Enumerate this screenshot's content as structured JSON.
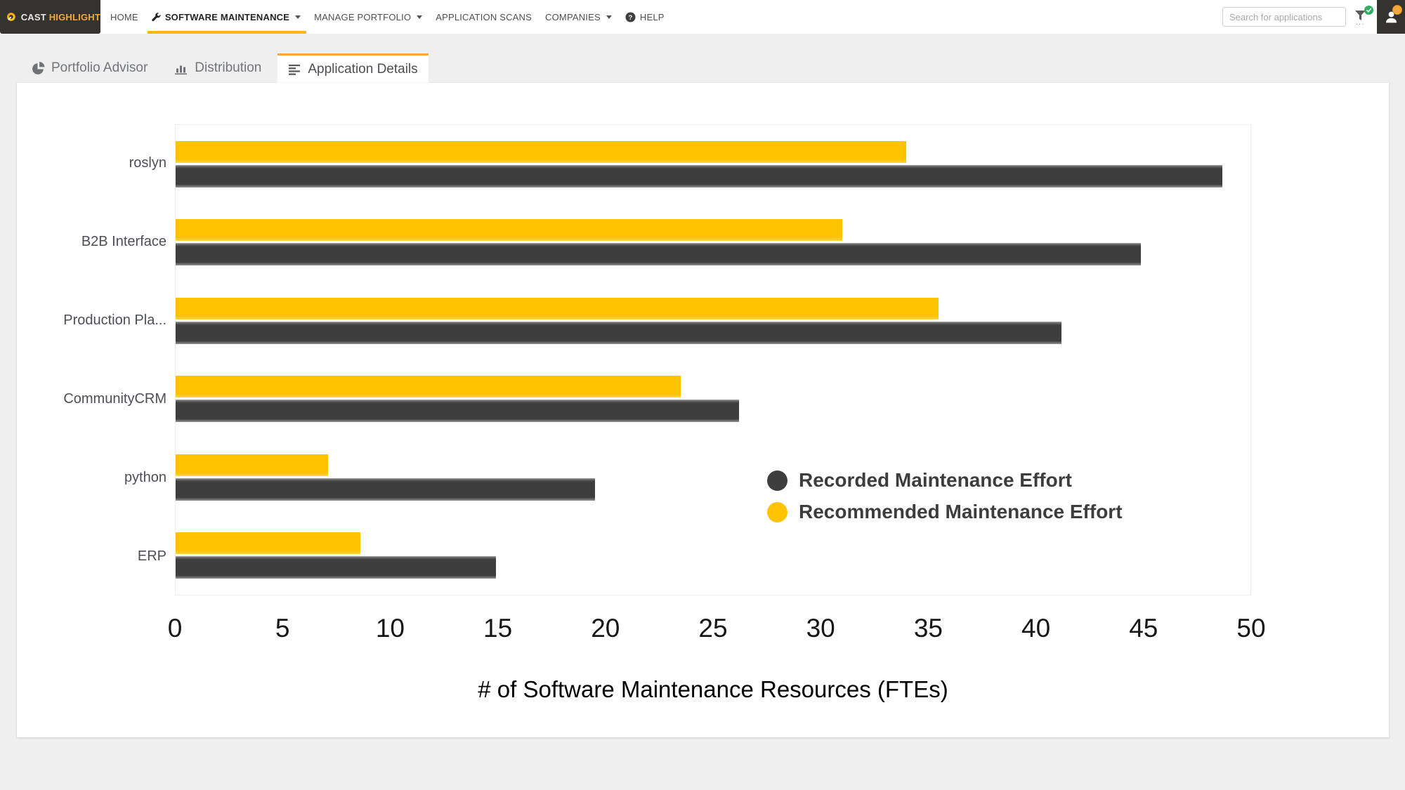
{
  "brand": {
    "name_primary": "CAST",
    "name_secondary": "HIGHLIGHT"
  },
  "nav": {
    "items": [
      {
        "label": "HOME"
      },
      {
        "label": "SOFTWARE MAINTENANCE",
        "active": true,
        "has_caret": true,
        "icon": "wrench"
      },
      {
        "label": "MANAGE PORTFOLIO",
        "has_caret": true
      },
      {
        "label": "APPLICATION SCANS"
      },
      {
        "label": "COMPANIES",
        "has_caret": true
      },
      {
        "label": "HELP",
        "icon": "question-circle"
      }
    ],
    "search": {
      "placeholder": "Search for applications"
    },
    "filter": {
      "status": "active-filter",
      "status_color": "#2eae60"
    }
  },
  "tabs": [
    {
      "label": "Portfolio Advisor",
      "icon": "pie-chart",
      "active": false
    },
    {
      "label": "Distribution",
      "icon": "bar-chart",
      "active": false
    },
    {
      "label": "Application Details",
      "icon": "list",
      "active": true
    }
  ],
  "chart_data": {
    "type": "bar",
    "orientation": "horizontal",
    "xlabel": "# of Software Maintenance Resources (FTEs)",
    "xlim": [
      0,
      50
    ],
    "xticks": [
      0,
      5,
      10,
      15,
      20,
      25,
      30,
      35,
      40,
      45,
      50
    ],
    "grid": false,
    "legend_position": "inside-right",
    "categories": [
      "roslyn",
      "B2B Interface",
      "Production Pla...",
      "CommunityCRM",
      "python",
      "ERP"
    ],
    "series": [
      {
        "name": "Recommended Maintenance Effort",
        "key": "recommended-maintenance-effort",
        "color": "#fec402",
        "values": [
          34,
          31,
          35.5,
          23.5,
          7.1,
          8.6
        ]
      },
      {
        "name": "Recorded Maintenance Effort",
        "key": "recorded-maintenance-effort",
        "color": "#3e3e3e",
        "values": [
          48.7,
          44.9,
          41.2,
          26.2,
          19.5,
          14.9
        ]
      }
    ],
    "legend": [
      {
        "name": "Recorded Maintenance Effort",
        "color": "#3e3e3e"
      },
      {
        "name": "Recommended Maintenance Effort",
        "color": "#fec402"
      }
    ]
  },
  "colors": {
    "accent_yellow": "#fdb616",
    "nav_dark": "#35332f",
    "page_bg": "#efefef"
  }
}
